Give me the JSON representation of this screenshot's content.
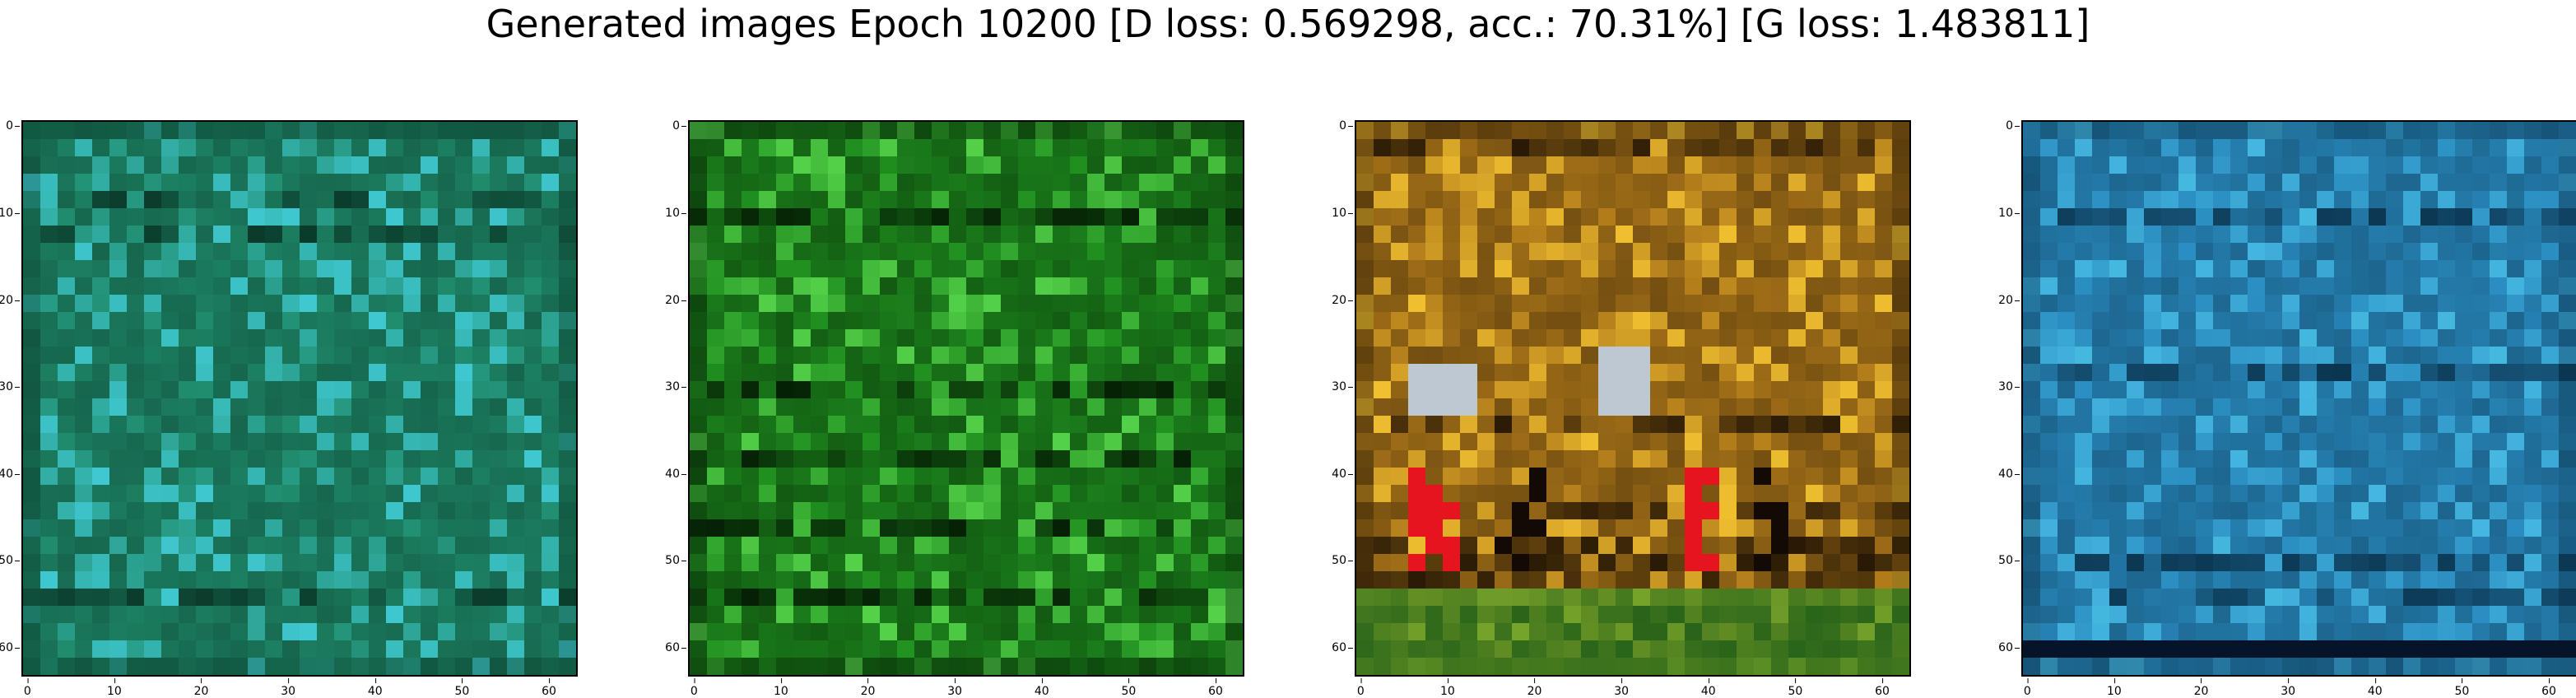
{
  "figure": {
    "title": "Generated images Epoch 10200 [D loss: 0.569298, acc.: 70.31%] [G loss: 1.483811]"
  },
  "panels": [
    {
      "id": "sample-1",
      "palette": "teal-green",
      "base": "#1f8a6a",
      "light": "#3fc8d0",
      "dark": "#0a3a2a"
    },
    {
      "id": "sample-2",
      "palette": "green",
      "base": "#1e8c1e",
      "light": "#55d24a",
      "dark": "#052005"
    },
    {
      "id": "sample-3",
      "palette": "orange-yellow",
      "base": "#b07a1a",
      "light": "#f0c030",
      "dark": "#2a1a05"
    },
    {
      "id": "sample-4",
      "palette": "blue",
      "base": "#2a8cc0",
      "light": "#45b8e0",
      "dark": "#0b3550"
    }
  ],
  "axis": {
    "ticks": [
      "0",
      "10",
      "20",
      "30",
      "40",
      "50",
      "60"
    ],
    "tick_values": [
      0,
      10,
      20,
      30,
      40,
      50,
      60
    ],
    "range": [
      -0.5,
      63.5
    ]
  }
}
